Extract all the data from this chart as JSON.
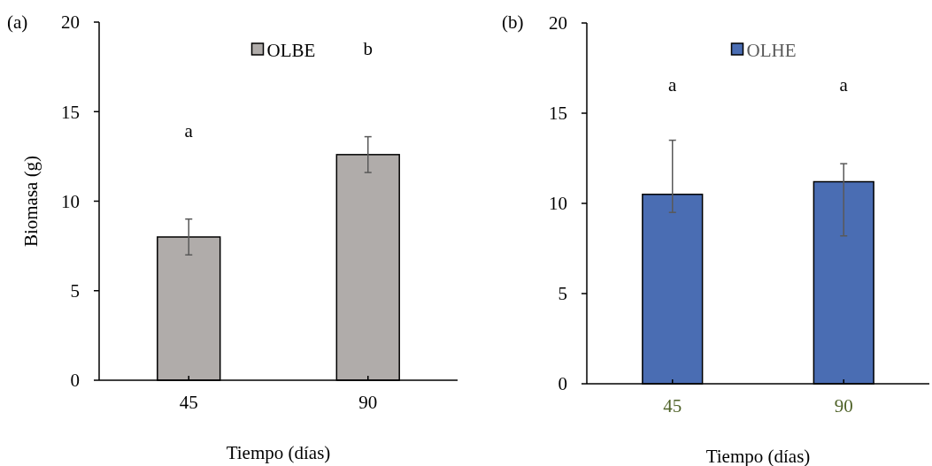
{
  "chart_data": [
    {
      "type": "bar",
      "ylabel": "Biomasa (g)",
      "xlabel": "Tiempo (días)",
      "categories": [
        "45",
        "90"
      ],
      "series": [
        {
          "name": "OLBE",
          "color": "#b0acaa",
          "values": [
            8.0,
            12.6
          ],
          "errors": [
            1.0,
            1.0
          ]
        }
      ],
      "ylim": [
        0,
        20
      ],
      "yticks": [
        0,
        5,
        10,
        15,
        20
      ],
      "grid": false,
      "legend": "top",
      "annotations": [
        "(a)",
        "a",
        "b"
      ]
    },
    {
      "type": "bar",
      "xlabel": "Tiempo (días)",
      "categories": [
        "45",
        "90"
      ],
      "series": [
        {
          "name": "OLHE",
          "color": "#4a6db3",
          "values": [
            10.5,
            11.2
          ],
          "errors": [
            [
              9.5,
              13.5
            ],
            [
              8.2,
              12.2
            ]
          ]
        }
      ],
      "ylim": [
        0,
        20
      ],
      "yticks": [
        0,
        5,
        10,
        15,
        20
      ],
      "grid": false,
      "legend": "top",
      "annotations": [
        "(b)",
        "a",
        "a"
      ]
    }
  ]
}
